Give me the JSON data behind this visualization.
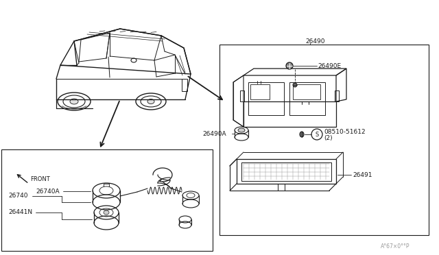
{
  "bg_color": "#ffffff",
  "line_color": "#1a1a1a",
  "gray_color": "#999999",
  "fig_width": 6.4,
  "fig_height": 3.72,
  "dpi": 100,
  "part_26490": "26490",
  "part_26490E": "26490E",
  "part_26490A": "26490A",
  "part_08510": "08510-51612",
  "part_08510b": "(2)",
  "part_26491": "26491",
  "part_26740": "26740",
  "part_26740A": "26740A",
  "part_26441N": "26441N",
  "watermark": "A°67×0°°P"
}
